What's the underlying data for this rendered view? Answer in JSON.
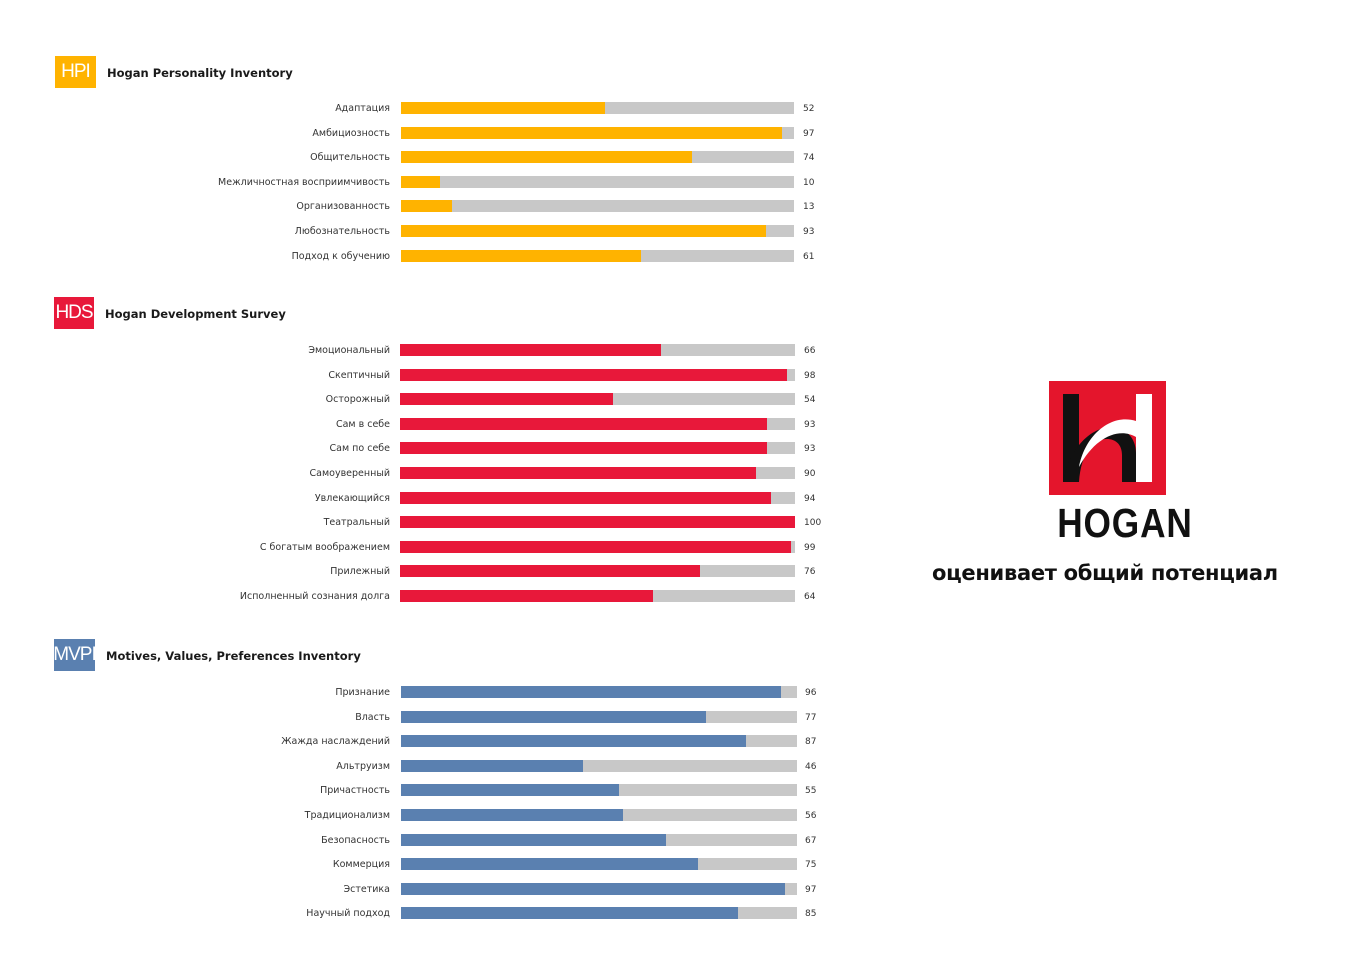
{
  "sections": [
    {
      "badge": "HPI",
      "title": "Hogan Personality Inventory",
      "color": "#ffb300",
      "rows": [
        {
          "label": "Адаптация",
          "value": 52
        },
        {
          "label": "Амбициозность",
          "value": 97
        },
        {
          "label": "Общительность",
          "value": 74
        },
        {
          "label": "Межличностная восприимчивость",
          "value": 10
        },
        {
          "label": "Организованность",
          "value": 13
        },
        {
          "label": "Любознательность",
          "value": 93
        },
        {
          "label": "Подход к обучению",
          "value": 61
        }
      ]
    },
    {
      "badge": "HDS",
      "title": "Hogan Development Survey",
      "color": "#e8183a",
      "rows": [
        {
          "label": "Эмоциональный",
          "value": 66
        },
        {
          "label": "Скептичный",
          "value": 98
        },
        {
          "label": "Осторожный",
          "value": 54
        },
        {
          "label": "Сам в себе",
          "value": 93
        },
        {
          "label": "Сам по себе",
          "value": 93
        },
        {
          "label": "Самоуверенный",
          "value": 90
        },
        {
          "label": "Увлекающийся",
          "value": 94
        },
        {
          "label": "Театральный",
          "value": 100
        },
        {
          "label": "С богатым воображением",
          "value": 99
        },
        {
          "label": "Прилежный",
          "value": 76
        },
        {
          "label": "Исполненный сознания долга",
          "value": 64
        }
      ]
    },
    {
      "badge": "MVPI",
      "title": "Motives, Values, Preferences Inventory",
      "color": "#5a80b0",
      "rows": [
        {
          "label": "Признание",
          "value": 96
        },
        {
          "label": "Власть",
          "value": 77
        },
        {
          "label": "Жажда наслаждений",
          "value": 87
        },
        {
          "label": "Альтруизм",
          "value": 46
        },
        {
          "label": "Причастность",
          "value": 55
        },
        {
          "label": "Традиционализм",
          "value": 56
        },
        {
          "label": "Безопасность",
          "value": 67
        },
        {
          "label": "Коммерция",
          "value": 75
        },
        {
          "label": "Эстетика",
          "value": 97
        },
        {
          "label": "Научный подход",
          "value": 85
        }
      ]
    }
  ],
  "chart_data": {
    "type": "bar",
    "orientation": "horizontal",
    "xlim": [
      0,
      100
    ],
    "track_color": "#c8c8c8"
  },
  "logo": {
    "word": "HOGAN",
    "color": "#e4152c"
  },
  "tagline": "оценивает общий потенциал"
}
